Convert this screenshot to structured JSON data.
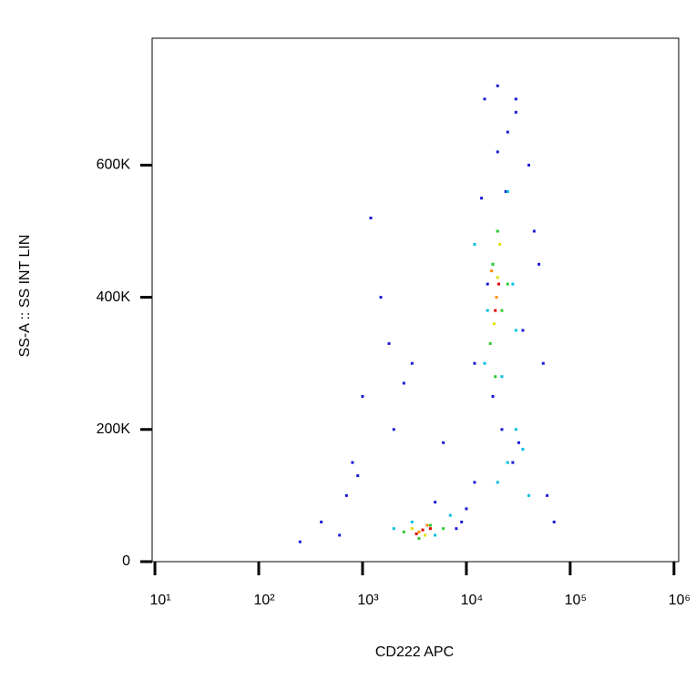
{
  "chart_data": {
    "type": "scatter",
    "x_label": "CD222 APC",
    "y_label": "SS-A :: SS INT LIN",
    "x_scale": "log",
    "xlim": [
      9.4,
      1110000
    ],
    "xticks": [
      {
        "value": 10,
        "label": "10¹"
      },
      {
        "value": 100,
        "label": "10²"
      },
      {
        "value": 1000,
        "label": "10³"
      },
      {
        "value": 10000,
        "label": "10⁴"
      },
      {
        "value": 100000,
        "label": "10⁵"
      },
      {
        "value": 1000000,
        "label": "10⁶"
      }
    ],
    "ylim": [
      0,
      792000
    ],
    "yticks": [
      0,
      {
        "value": 200000,
        "label": "200K"
      },
      {
        "value": 400000,
        "label": "400K"
      },
      {
        "value": 600000,
        "label": "600K"
      }
    ],
    "series": [
      {
        "color": "#1a1ad8",
        "x": [
          250,
          400,
          700,
          1000,
          1500,
          2000,
          800,
          1200,
          3000,
          5000,
          8000,
          12000,
          15000,
          20000,
          25000,
          30000,
          40000,
          50000,
          60000,
          70000,
          12000,
          18000,
          22000,
          35000,
          45000,
          9000,
          14000,
          28000,
          32000,
          600,
          900,
          1800,
          2500,
          6000,
          10000,
          30000,
          55000,
          16000,
          24000,
          20000
        ],
        "values": [
          30000,
          60000,
          100000,
          250000,
          400000,
          200000,
          150000,
          520000,
          300000,
          90000,
          50000,
          120000,
          700000,
          720000,
          650000,
          680000,
          600000,
          450000,
          100000,
          60000,
          300000,
          250000,
          200000,
          350000,
          500000,
          60000,
          550000,
          150000,
          180000,
          40000,
          130000,
          330000,
          270000,
          180000,
          80000,
          700000,
          300000,
          420000,
          560000,
          620000
        ]
      },
      {
        "color": "#00c0e0",
        "x": [
          15000,
          20000,
          25000,
          18000,
          22000,
          30000,
          16000,
          28000,
          3000,
          5000,
          2000,
          7000,
          25000,
          30000,
          20000,
          35000,
          12000,
          40000
        ],
        "values": [
          300000,
          500000,
          560000,
          450000,
          280000,
          350000,
          380000,
          420000,
          60000,
          40000,
          50000,
          70000,
          150000,
          200000,
          120000,
          170000,
          480000,
          100000
        ]
      },
      {
        "color": "#30c830",
        "x": [
          18000,
          22000,
          17000,
          25000,
          20000,
          19000,
          2500,
          4500,
          3500,
          6000
        ],
        "values": [
          450000,
          380000,
          330000,
          420000,
          500000,
          280000,
          45000,
          55000,
          35000,
          50000
        ]
      },
      {
        "color": "#e0e000",
        "x": [
          20000,
          18500,
          21000,
          3000,
          4000
        ],
        "values": [
          430000,
          360000,
          480000,
          50000,
          40000
        ]
      },
      {
        "color": "#ff8c00",
        "x": [
          19500,
          17500,
          3500,
          4200
        ],
        "values": [
          400000,
          440000,
          45000,
          55000
        ]
      },
      {
        "color": "#e00000",
        "x": [
          19000,
          20500,
          3800,
          3300,
          4500
        ],
        "values": [
          380000,
          420000,
          48000,
          42000,
          50000
        ]
      }
    ]
  }
}
